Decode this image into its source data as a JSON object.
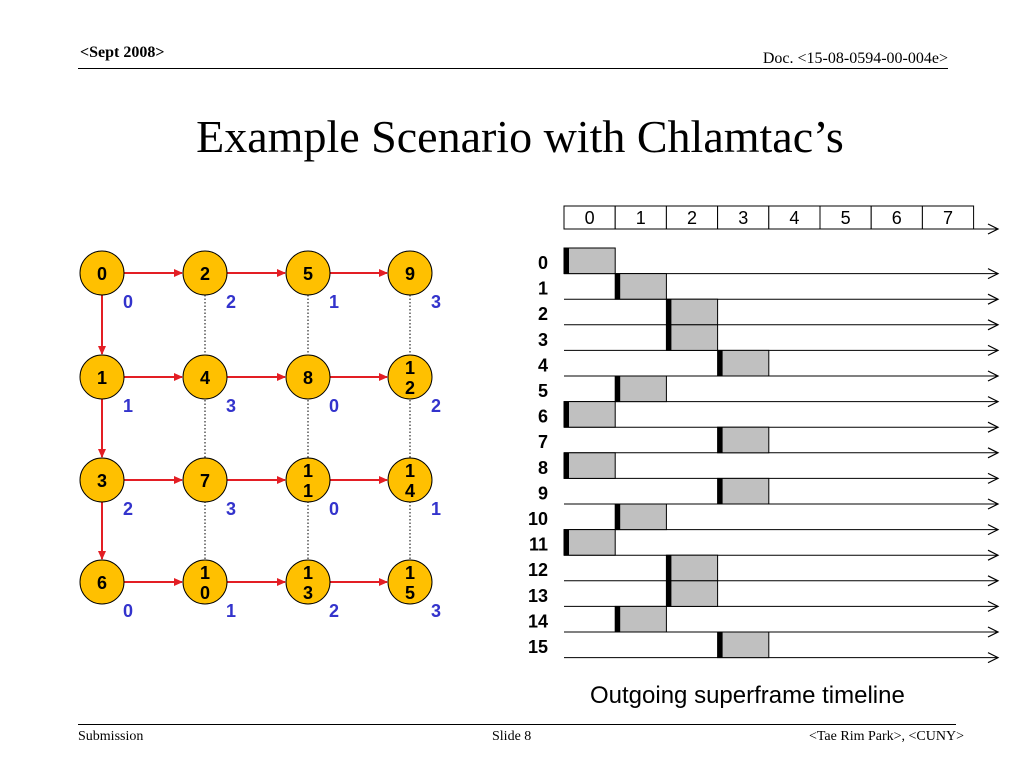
{
  "header": {
    "left": "<Sept 2008>",
    "right": "Doc. <15-08-0594-00-004e>"
  },
  "title": "Example Scenario with Chlamtac’s",
  "footer": {
    "left": "Submission",
    "center": "Slide 8",
    "right": "<Tae Rim Park>, <CUNY>"
  },
  "caption": "Outgoing superframe timeline",
  "colors": {
    "node_fill": "#FFC000",
    "arrow": "#E31E24",
    "slot_number": "#3333CC",
    "busy_fill": "#C0C0C0"
  },
  "grid": {
    "rows": [
      [
        {
          "id": [
            "0"
          ],
          "slot": "0"
        },
        {
          "id": [
            "2"
          ],
          "slot": "2"
        },
        {
          "id": [
            "5"
          ],
          "slot": "1"
        },
        {
          "id": [
            "9"
          ],
          "slot": "3"
        }
      ],
      [
        {
          "id": [
            "1"
          ],
          "slot": "1"
        },
        {
          "id": [
            "4"
          ],
          "slot": "3"
        },
        {
          "id": [
            "8"
          ],
          "slot": "0"
        },
        {
          "id": [
            "1",
            "2"
          ],
          "slot": "2"
        }
      ],
      [
        {
          "id": [
            "3"
          ],
          "slot": "2"
        },
        {
          "id": [
            "7"
          ],
          "slot": "3"
        },
        {
          "id": [
            "1",
            "1"
          ],
          "slot": "0"
        },
        {
          "id": [
            "1",
            "4"
          ],
          "slot": "1"
        }
      ],
      [
        {
          "id": [
            "6"
          ],
          "slot": "0"
        },
        {
          "id": [
            "1",
            "0"
          ],
          "slot": "1"
        },
        {
          "id": [
            "1",
            "3"
          ],
          "slot": "2"
        },
        {
          "id": [
            "1",
            "5"
          ],
          "slot": "3"
        }
      ]
    ]
  },
  "timeline": {
    "slot_headers": [
      "0",
      "1",
      "2",
      "3",
      "4",
      "5",
      "6",
      "7"
    ],
    "nodes": [
      {
        "label": "0",
        "slot": 0,
        "width": 1
      },
      {
        "label": "1",
        "slot": 1,
        "width": 1
      },
      {
        "label": "2",
        "slot": 2,
        "width": 1
      },
      {
        "label": "3",
        "slot": 2,
        "width": 1
      },
      {
        "label": "4",
        "slot": 3,
        "width": 1
      },
      {
        "label": "5",
        "slot": 1,
        "width": 1
      },
      {
        "label": "6",
        "slot": 0,
        "width": 1
      },
      {
        "label": "7",
        "slot": 3,
        "width": 1
      },
      {
        "label": "8",
        "slot": 0,
        "width": 1
      },
      {
        "label": "9",
        "slot": 3,
        "width": 1
      },
      {
        "label": "10",
        "slot": 1,
        "width": 1
      },
      {
        "label": "11",
        "slot": 0,
        "width": 1
      },
      {
        "label": "12",
        "slot": 2,
        "width": 1
      },
      {
        "label": "13",
        "slot": 2,
        "width": 1
      },
      {
        "label": "14",
        "slot": 1,
        "width": 1
      },
      {
        "label": "15",
        "slot": 3,
        "width": 1
      }
    ]
  }
}
